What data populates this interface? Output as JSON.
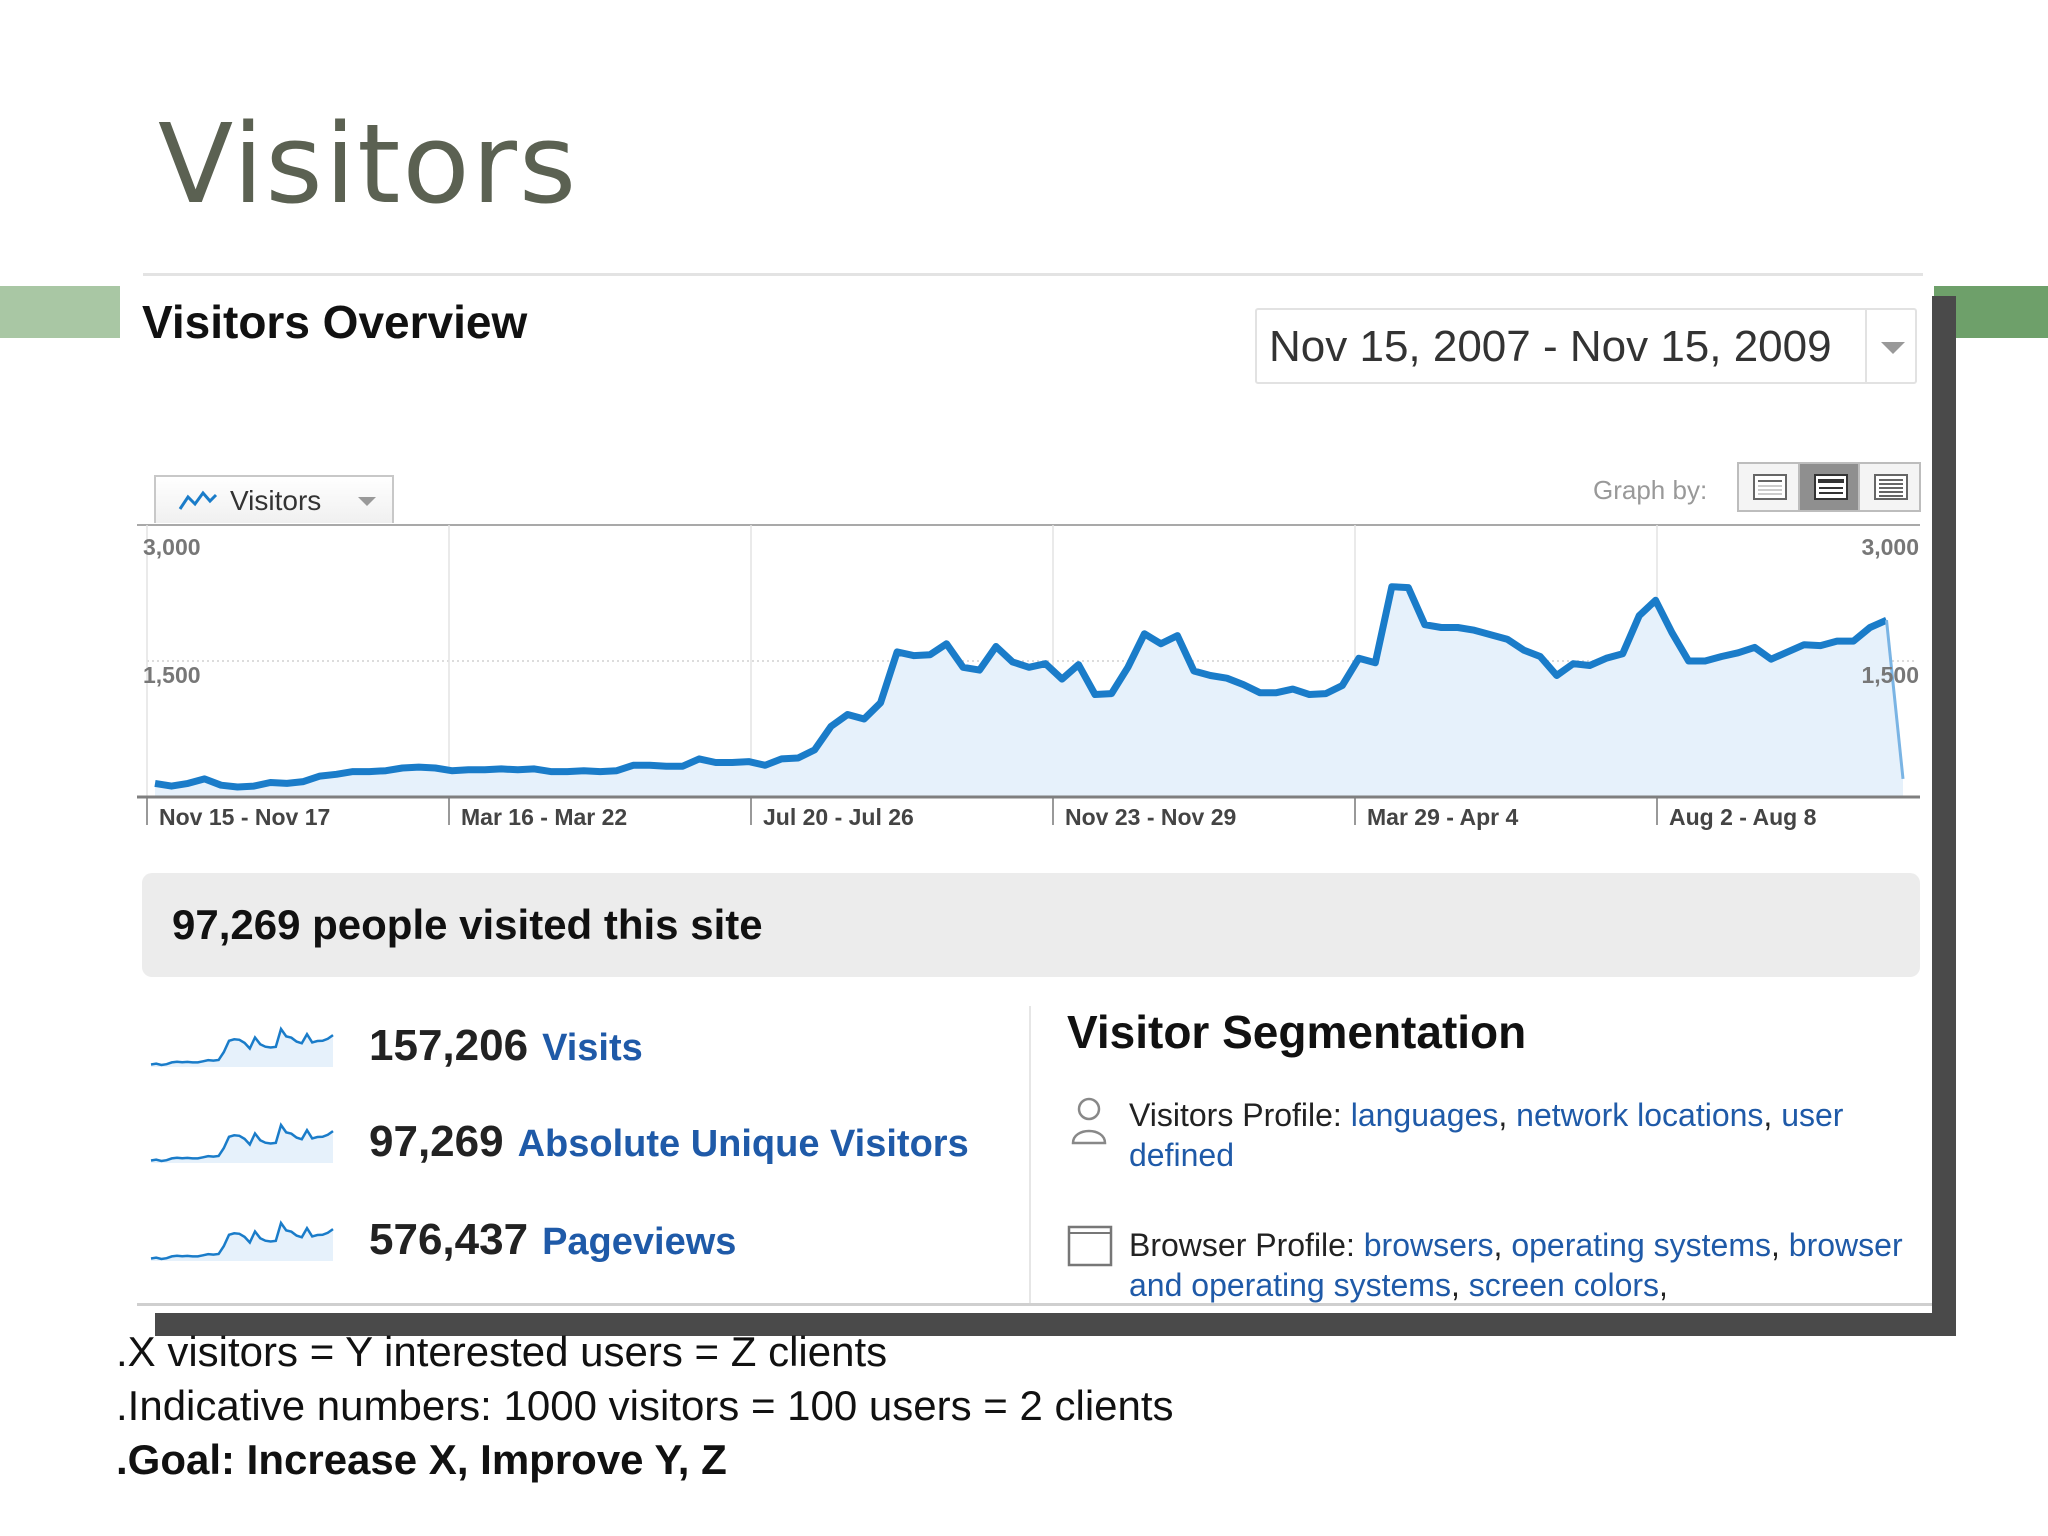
{
  "slide": {
    "title": "Visitors",
    "bullets": [
      ".X visitors = Y interested users = Z clients",
      ".Indicative numbers: 1000 visitors = 100 users = 2 clients",
      ".Goal: Increase X, Improve Y, Z"
    ],
    "accent_colors": [
      "#a9c7a4",
      "#6ea06a"
    ]
  },
  "header": {
    "title": "Visitors Overview",
    "date_range": "Nov 15, 2007 - Nov 15, 2009"
  },
  "graph_controls": {
    "metric": "Visitors",
    "metric_icon": "line-graph-icon",
    "graph_by_label": "Graph by:",
    "graph_by_options": [
      "day-icon",
      "week-icon",
      "month-icon"
    ],
    "graph_by_selected": "week-icon"
  },
  "chart_data": {
    "type": "area",
    "title": "",
    "ylim": [
      0,
      3000
    ],
    "y_ticks": [
      "3,000",
      "1,500"
    ],
    "x_labels": [
      "Nov 15 - Nov 17",
      "Mar 16 - Mar 22",
      "Jul 20 - Jul 26",
      "Nov 23 - Nov 29",
      "Mar 29 - Apr 4",
      "Aug 2 - Aug 8"
    ],
    "grid": true,
    "series": [
      {
        "color": "#1a7cc9",
        "values": [
          150,
          120,
          150,
          200,
          130,
          110,
          120,
          160,
          150,
          170,
          230,
          250,
          280,
          280,
          290,
          320,
          330,
          320,
          290,
          300,
          300,
          310,
          300,
          310,
          280,
          280,
          290,
          280,
          290,
          350,
          350,
          340,
          340,
          420,
          380,
          380,
          390,
          350,
          420,
          430,
          520,
          780,
          910,
          860,
          1040,
          1600,
          1560,
          1570,
          1690,
          1430,
          1400,
          1660,
          1490,
          1430,
          1470,
          1300,
          1460,
          1130,
          1140,
          1430,
          1800,
          1690,
          1780,
          1390,
          1340,
          1310,
          1240,
          1150,
          1150,
          1190,
          1130,
          1140,
          1230,
          1530,
          1480,
          2320,
          2310,
          1900,
          1870,
          1870,
          1840,
          1790,
          1740,
          1620,
          1550,
          1340,
          1470,
          1450,
          1530,
          1580,
          2000,
          2170,
          1810,
          1500,
          1500,
          1550,
          1590,
          1650,
          1520,
          1600,
          1680,
          1670,
          1720,
          1720,
          1870,
          1950,
          200
        ]
      }
    ]
  },
  "summary": {
    "text": "97,269 people visited this site"
  },
  "stats": [
    {
      "value": "157,206",
      "label": "Visits"
    },
    {
      "value": "97,269",
      "label": "Absolute Unique Visitors"
    },
    {
      "value": "576,437",
      "label": "Pageviews"
    }
  ],
  "segmentation": {
    "title": "Visitor Segmentation",
    "visitors_profile": {
      "label": "Visitors Profile:",
      "links": [
        "languages",
        "network locations",
        "user defined"
      ]
    },
    "browser_profile": {
      "label": "Browser Profile:",
      "links": [
        "browsers",
        "operating systems",
        "browser and operating systems",
        "screen colors"
      ]
    }
  }
}
